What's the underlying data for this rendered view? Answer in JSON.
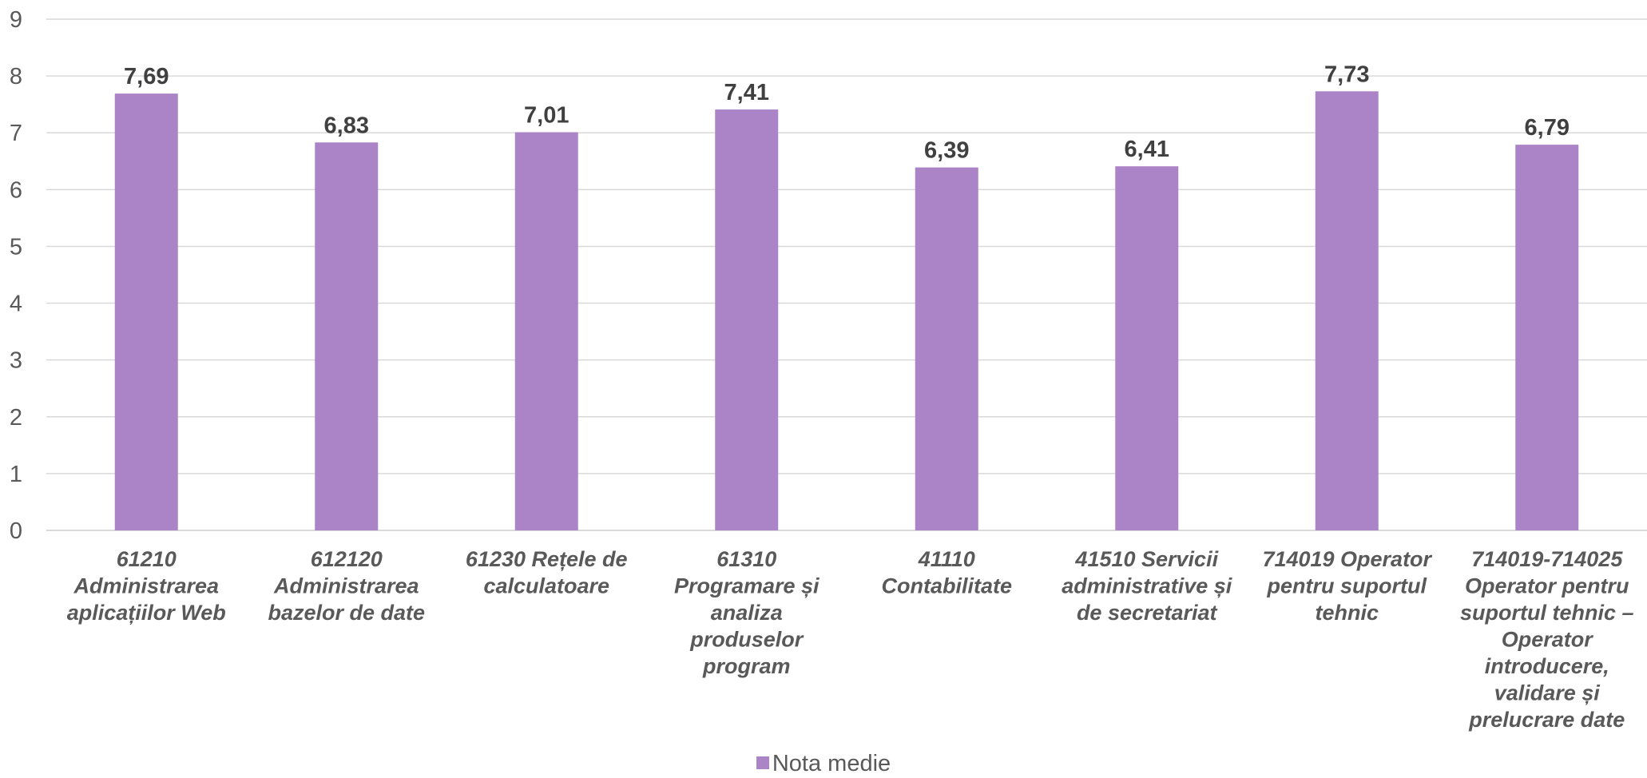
{
  "chart_data": {
    "type": "bar",
    "categories": [
      [
        "61210",
        "Administrarea",
        "aplicațiilor Web"
      ],
      [
        "612120",
        "Administrarea",
        "bazelor de date"
      ],
      [
        "61230 Rețele de",
        "calculatoare"
      ],
      [
        "61310",
        "Programare și",
        "analiza",
        "produselor",
        "program"
      ],
      [
        "41110",
        "Contabilitate"
      ],
      [
        "41510 Servicii",
        "administrative și",
        "de secretariat"
      ],
      [
        "714019 Operator",
        "pentru suportul",
        "tehnic"
      ],
      [
        "714019-714025",
        "Operator pentru",
        "suportul tehnic –",
        "Operator",
        "introducere,",
        "validare și",
        "prelucrare date"
      ]
    ],
    "series": [
      {
        "name": "Nota medie",
        "values": [
          7.69,
          6.83,
          7.01,
          7.41,
          6.39,
          6.41,
          7.73,
          6.79
        ],
        "labels": [
          "7,69",
          "6,83",
          "7,01",
          "7,41",
          "6,39",
          "6,41",
          "7,73",
          "6,79"
        ],
        "color": "#ab84c7"
      }
    ],
    "ylim": [
      0,
      9
    ],
    "yticks": [
      "0",
      "1",
      "2",
      "3",
      "4",
      "5",
      "6",
      "7",
      "8",
      "9"
    ],
    "grid": true,
    "legend_position": "bottom"
  }
}
